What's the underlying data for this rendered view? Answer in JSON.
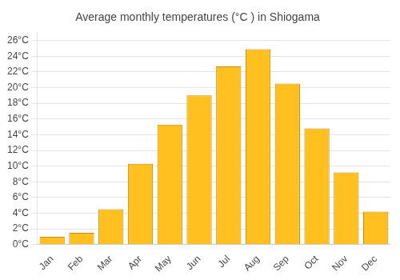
{
  "chart_data": {
    "type": "bar",
    "title": "Average monthly temperatures (°C ) in Shiogama",
    "categories": [
      "Jan",
      "Feb",
      "Mar",
      "Apr",
      "May",
      "Jun",
      "Jul",
      "Aug",
      "Sep",
      "Oct",
      "Nov",
      "Dec"
    ],
    "values": [
      1.0,
      1.5,
      4.5,
      10.3,
      15.3,
      19.0,
      22.7,
      24.9,
      20.5,
      14.8,
      9.2,
      4.2
    ],
    "color": "#FFC020",
    "ylim": [
      0,
      27
    ],
    "yticks": [
      {
        "value": 0,
        "label": "0°C"
      },
      {
        "value": 2,
        "label": "2°C"
      },
      {
        "value": 4,
        "label": "4°C"
      },
      {
        "value": 6,
        "label": "6°C"
      },
      {
        "value": 8,
        "label": "8°C"
      },
      {
        "value": 10,
        "label": "10°C"
      },
      {
        "value": 12,
        "label": "12°C"
      },
      {
        "value": 14,
        "label": "14°C"
      },
      {
        "value": 16,
        "label": "16°C"
      },
      {
        "value": 18,
        "label": "18°C"
      },
      {
        "value": 20,
        "label": "20°C"
      },
      {
        "value": 22,
        "label": "22°C"
      },
      {
        "value": 24,
        "label": "24°C"
      },
      {
        "value": 26,
        "label": "26°C"
      }
    ],
    "grid": true
  }
}
